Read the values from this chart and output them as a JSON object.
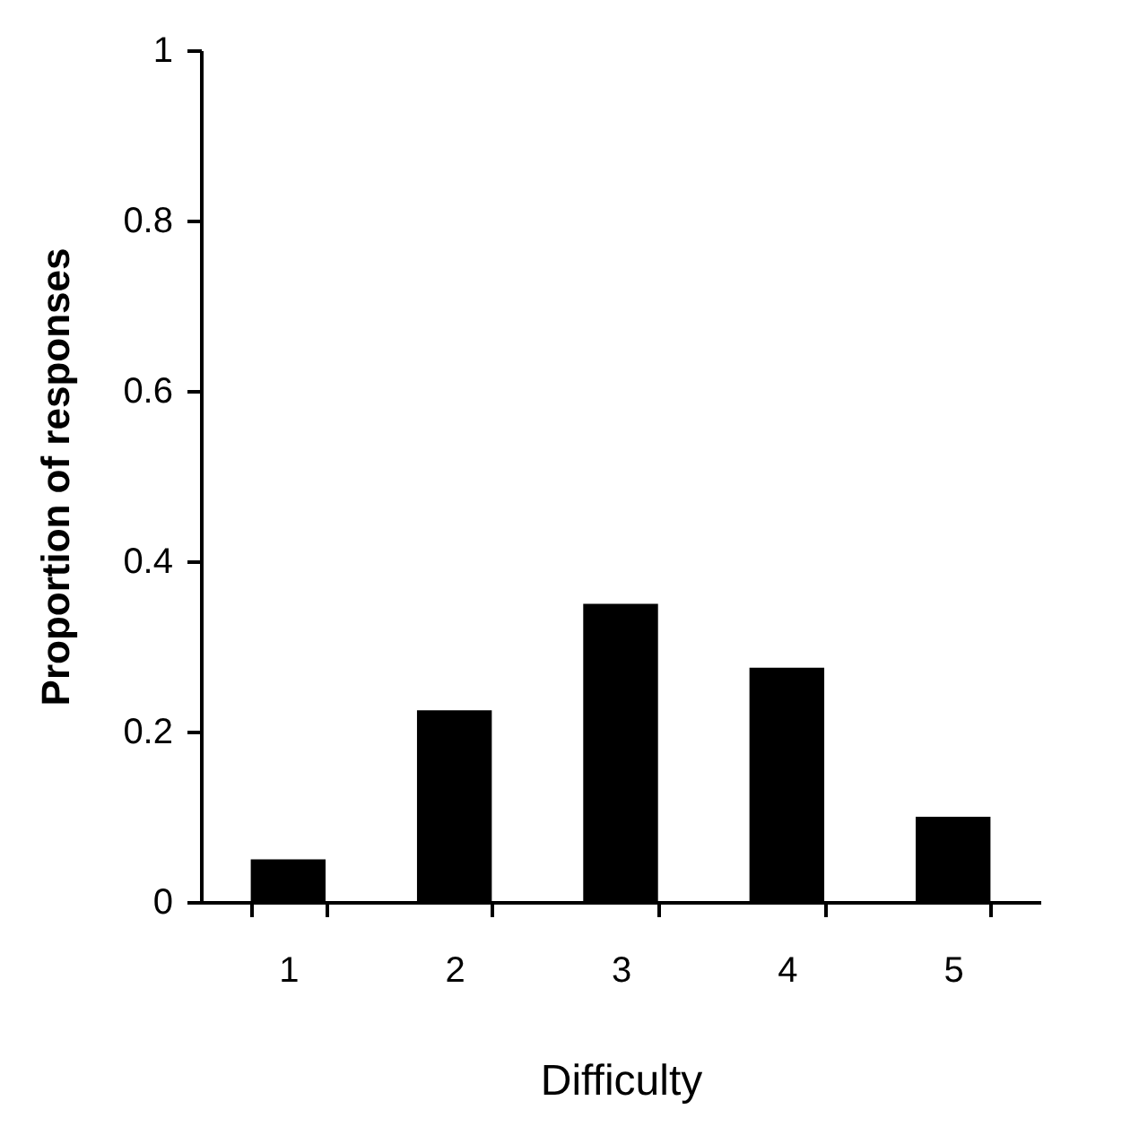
{
  "chart_data": {
    "type": "bar",
    "xlabel": "Difficulty",
    "ylabel": "Proportion of responses",
    "categories": [
      "1",
      "2",
      "3",
      "4",
      "5"
    ],
    "values": [
      0.05,
      0.225,
      0.35,
      0.275,
      0.1
    ],
    "color": "#000000",
    "ylim": [
      0,
      1
    ],
    "yticks": [
      0,
      0.2,
      0.4,
      0.6,
      0.8,
      1
    ],
    "grid": false
  }
}
